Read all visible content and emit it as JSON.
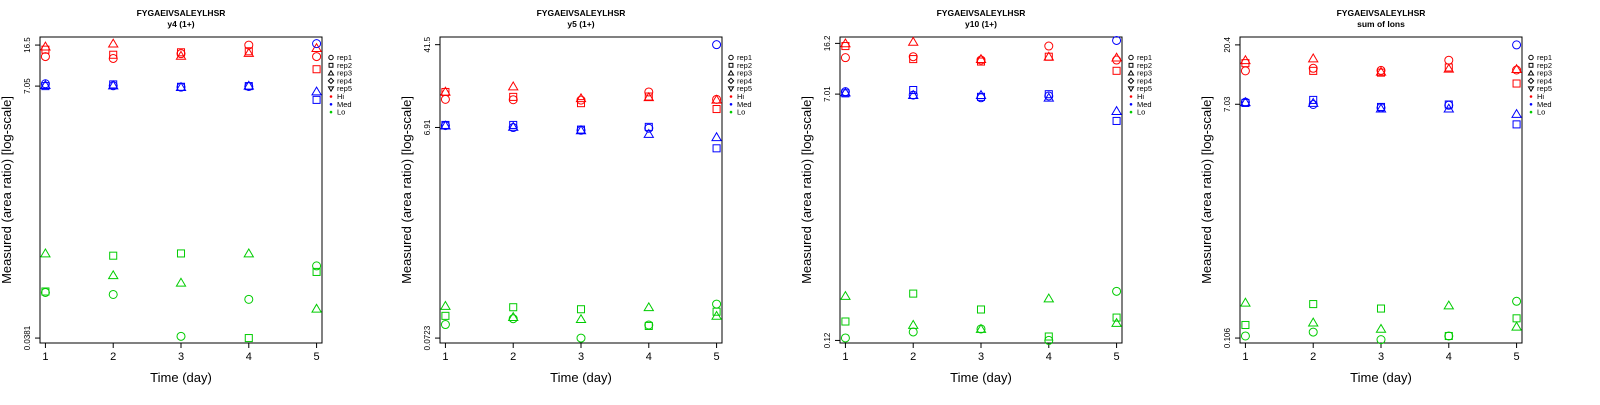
{
  "chart_data": [
    {
      "type": "scatter",
      "title": "FYGAEIVSALEYLHSR",
      "subtitle": "y4 (1+)",
      "xlabel": "Time (day)",
      "ylabel": "Measured (area ratio) [log-scale]",
      "x_ticks": [
        "1",
        "2",
        "3",
        "4",
        "5"
      ],
      "y_scale": "log",
      "y_ticks": [
        0.0381,
        7.05,
        16.5
      ],
      "y_tick_labels": [
        "0.0381",
        "7.05",
        "16.5"
      ],
      "xlim": [
        0.92,
        5.08
      ],
      "ylim": [
        0.0344,
        19.5
      ],
      "legend_position": "right",
      "legend": {
        "replicates": [
          {
            "name": "rep1",
            "marker": "circle"
          },
          {
            "name": "rep2",
            "marker": "square"
          },
          {
            "name": "rep3",
            "marker": "triangle-up"
          },
          {
            "name": "rep4",
            "marker": "diamond"
          },
          {
            "name": "rep5",
            "marker": "triangle-down"
          }
        ],
        "groups": [
          {
            "name": "Hi",
            "color": "#ff0000"
          },
          {
            "name": "Med",
            "color": "#0000ff"
          },
          {
            "name": "Lo",
            "color": "#00cc00"
          }
        ]
      },
      "series": [
        {
          "group": "Hi",
          "rep": "rep1",
          "x": [
            1,
            2,
            3,
            4,
            5
          ],
          "y": [
            13.0,
            12.5,
            13.8,
            16.5,
            13.0
          ]
        },
        {
          "group": "Hi",
          "rep": "rep2",
          "x": [
            1,
            2,
            3,
            4,
            5
          ],
          "y": [
            15.0,
            13.5,
            14.2,
            14.5,
            10.0
          ]
        },
        {
          "group": "Hi",
          "rep": "rep3",
          "x": [
            1,
            2,
            3,
            4,
            5
          ],
          "y": [
            16.0,
            17.0,
            13.2,
            14.0,
            15.5
          ]
        },
        {
          "group": "Med",
          "rep": "rep1",
          "x": [
            1,
            2,
            3,
            4,
            5
          ],
          "y": [
            7.4,
            7.1,
            6.9,
            7.0,
            17.0
          ]
        },
        {
          "group": "Med",
          "rep": "rep2",
          "x": [
            1,
            2,
            3,
            4,
            5
          ],
          "y": [
            7.05,
            7.3,
            6.95,
            7.05,
            5.3
          ]
        },
        {
          "group": "Med",
          "rep": "rep3",
          "x": [
            1,
            2,
            3,
            4,
            5
          ],
          "y": [
            7.2,
            7.15,
            6.9,
            7.1,
            6.3
          ]
        },
        {
          "group": "Lo",
          "rep": "rep1",
          "x": [
            1,
            2,
            3,
            4,
            5
          ],
          "y": [
            0.098,
            0.094,
            0.0395,
            0.085,
            0.17
          ]
        },
        {
          "group": "Lo",
          "rep": "rep2",
          "x": [
            1,
            2,
            3,
            4,
            5
          ],
          "y": [
            0.1,
            0.21,
            0.22,
            0.0381,
            0.15
          ]
        },
        {
          "group": "Lo",
          "rep": "rep3",
          "x": [
            1,
            2,
            3,
            4,
            5
          ],
          "y": [
            0.22,
            0.14,
            0.12,
            0.22,
            0.07
          ]
        }
      ]
    },
    {
      "type": "scatter",
      "title": "FYGAEIVSALEYLHSR",
      "subtitle": "y5 (1+)",
      "xlabel": "Time (day)",
      "ylabel": "Measured (area ratio) [log-scale]",
      "x_ticks": [
        "1",
        "2",
        "3",
        "4",
        "5"
      ],
      "y_scale": "log",
      "y_ticks": [
        0.0723,
        6.91,
        41.5
      ],
      "y_tick_labels": [
        "0.0723",
        "6.91",
        "41.5"
      ],
      "xlim": [
        0.92,
        5.08
      ],
      "ylim": [
        0.065,
        49.0
      ],
      "legend_position": "right",
      "legend": {
        "replicates": [
          {
            "name": "rep1",
            "marker": "circle"
          },
          {
            "name": "rep2",
            "marker": "square"
          },
          {
            "name": "rep3",
            "marker": "triangle-up"
          },
          {
            "name": "rep4",
            "marker": "diamond"
          },
          {
            "name": "rep5",
            "marker": "triangle-down"
          }
        ],
        "groups": [
          {
            "name": "Hi",
            "color": "#ff0000"
          },
          {
            "name": "Med",
            "color": "#0000ff"
          },
          {
            "name": "Lo",
            "color": "#00cc00"
          }
        ]
      },
      "series": [
        {
          "group": "Hi",
          "rep": "rep1",
          "x": [
            1,
            2,
            3,
            4,
            5
          ],
          "y": [
            12.7,
            12.6,
            12.5,
            14.9,
            12.7
          ]
        },
        {
          "group": "Hi",
          "rep": "rep2",
          "x": [
            1,
            2,
            3,
            4,
            5
          ],
          "y": [
            14.9,
            13.4,
            11.7,
            13.5,
            10.3
          ]
        },
        {
          "group": "Hi",
          "rep": "rep3",
          "x": [
            1,
            2,
            3,
            4,
            5
          ],
          "y": [
            15.0,
            16.8,
            13.0,
            13.3,
            12.6
          ]
        },
        {
          "group": "Med",
          "rep": "rep1",
          "x": [
            1,
            2,
            3,
            4,
            5
          ],
          "y": [
            7.2,
            6.9,
            6.5,
            6.8,
            41.5
          ]
        },
        {
          "group": "Med",
          "rep": "rep2",
          "x": [
            1,
            2,
            3,
            4,
            5
          ],
          "y": [
            7.3,
            7.3,
            6.6,
            7.0,
            4.4
          ]
        },
        {
          "group": "Med",
          "rep": "rep3",
          "x": [
            1,
            2,
            3,
            4,
            5
          ],
          "y": [
            7.2,
            7.0,
            6.5,
            6.0,
            5.6
          ]
        },
        {
          "group": "Lo",
          "rep": "rep1",
          "x": [
            1,
            2,
            3,
            4,
            5
          ],
          "y": [
            0.097,
            0.11,
            0.0723,
            0.096,
            0.151
          ]
        },
        {
          "group": "Lo",
          "rep": "rep2",
          "x": [
            1,
            2,
            3,
            4,
            5
          ],
          "y": [
            0.117,
            0.141,
            0.135,
            0.094,
            0.128
          ]
        },
        {
          "group": "Lo",
          "rep": "rep3",
          "x": [
            1,
            2,
            3,
            4,
            5
          ],
          "y": [
            0.145,
            0.114,
            0.109,
            0.141,
            0.117
          ]
        }
      ]
    },
    {
      "type": "scatter",
      "title": "FYGAEIVSALEYLHSR",
      "subtitle": "y10 (1+)",
      "xlabel": "Time (day)",
      "ylabel": "Measured (area ratio) [log-scale]",
      "x_ticks": [
        "1",
        "2",
        "3",
        "4",
        "5"
      ],
      "y_scale": "log",
      "y_ticks": [
        0.12,
        7.01,
        16.2
      ],
      "y_tick_labels": [
        "0.12",
        "7.01",
        "16.2"
      ],
      "xlim": [
        0.92,
        5.08
      ],
      "ylim": [
        0.115,
        18.0
      ],
      "legend_position": "right",
      "legend": {
        "replicates": [
          {
            "name": "rep1",
            "marker": "circle"
          },
          {
            "name": "rep2",
            "marker": "square"
          },
          {
            "name": "rep3",
            "marker": "triangle-up"
          },
          {
            "name": "rep4",
            "marker": "diamond"
          },
          {
            "name": "rep5",
            "marker": "triangle-down"
          }
        ],
        "groups": [
          {
            "name": "Hi",
            "color": "#ff0000"
          },
          {
            "name": "Med",
            "color": "#0000ff"
          },
          {
            "name": "Lo",
            "color": "#00cc00"
          }
        ]
      },
      "series": [
        {
          "group": "Hi",
          "rep": "rep1",
          "x": [
            1,
            2,
            3,
            4,
            5
          ],
          "y": [
            12.8,
            13.0,
            12.3,
            15.5,
            12.3
          ]
        },
        {
          "group": "Hi",
          "rep": "rep2",
          "x": [
            1,
            2,
            3,
            4,
            5
          ],
          "y": [
            15.5,
            12.5,
            12.0,
            13.0,
            10.3
          ]
        },
        {
          "group": "Hi",
          "rep": "rep3",
          "x": [
            1,
            2,
            3,
            4,
            5
          ],
          "y": [
            16.2,
            16.6,
            12.5,
            13.0,
            12.8
          ]
        },
        {
          "group": "Med",
          "rep": "rep1",
          "x": [
            1,
            2,
            3,
            4,
            5
          ],
          "y": [
            7.3,
            6.9,
            6.6,
            6.8,
            17.0
          ]
        },
        {
          "group": "Med",
          "rep": "rep2",
          "x": [
            1,
            2,
            3,
            4,
            5
          ],
          "y": [
            7.1,
            7.5,
            6.7,
            7.0,
            4.5
          ]
        },
        {
          "group": "Med",
          "rep": "rep3",
          "x": [
            1,
            2,
            3,
            4,
            5
          ],
          "y": [
            7.2,
            6.9,
            6.9,
            6.6,
            5.3
          ]
        },
        {
          "group": "Lo",
          "rep": "rep1",
          "x": [
            1,
            2,
            3,
            4,
            5
          ],
          "y": [
            0.125,
            0.138,
            0.145,
            0.12,
            0.27
          ]
        },
        {
          "group": "Lo",
          "rep": "rep2",
          "x": [
            1,
            2,
            3,
            4,
            5
          ],
          "y": [
            0.164,
            0.26,
            0.2,
            0.128,
            0.175
          ]
        },
        {
          "group": "Lo",
          "rep": "rep3",
          "x": [
            1,
            2,
            3,
            4,
            5
          ],
          "y": [
            0.25,
            0.155,
            0.145,
            0.24,
            0.16
          ]
        }
      ]
    },
    {
      "type": "scatter",
      "title": "FYGAEIVSALEYLHSR",
      "subtitle": "sum of Ions",
      "xlabel": "Time (day)",
      "ylabel": "Measured (area ratio) [log-scale]",
      "x_ticks": [
        "1",
        "2",
        "3",
        "4",
        "5"
      ],
      "y_scale": "log",
      "y_ticks": [
        0.106,
        7.03,
        20.4
      ],
      "y_tick_labels": [
        "0.106",
        "7.03",
        "20.4"
      ],
      "xlim": [
        0.92,
        5.08
      ],
      "ylim": [
        0.097,
        23.5
      ],
      "legend_position": "right",
      "legend": {
        "replicates": [
          {
            "name": "rep1",
            "marker": "circle"
          },
          {
            "name": "rep2",
            "marker": "square"
          },
          {
            "name": "rep3",
            "marker": "triangle-up"
          },
          {
            "name": "rep4",
            "marker": "diamond"
          },
          {
            "name": "rep5",
            "marker": "triangle-down"
          }
        ],
        "groups": [
          {
            "name": "Hi",
            "color": "#ff0000"
          },
          {
            "name": "Med",
            "color": "#0000ff"
          },
          {
            "name": "Lo",
            "color": "#00cc00"
          }
        ]
      },
      "series": [
        {
          "group": "Hi",
          "rep": "rep1",
          "x": [
            1,
            2,
            3,
            4,
            5
          ],
          "y": [
            12.8,
            13.4,
            12.9,
            15.5,
            13.0
          ]
        },
        {
          "group": "Hi",
          "rep": "rep2",
          "x": [
            1,
            2,
            3,
            4,
            5
          ],
          "y": [
            14.7,
            12.8,
            12.4,
            13.6,
            10.2
          ]
        },
        {
          "group": "Hi",
          "rep": "rep3",
          "x": [
            1,
            2,
            3,
            4,
            5
          ],
          "y": [
            15.5,
            16.0,
            12.6,
            13.3,
            13.2
          ]
        },
        {
          "group": "Med",
          "rep": "rep1",
          "x": [
            1,
            2,
            3,
            4,
            5
          ],
          "y": [
            7.3,
            7.0,
            6.6,
            6.9,
            20.4
          ]
        },
        {
          "group": "Med",
          "rep": "rep2",
          "x": [
            1,
            2,
            3,
            4,
            5
          ],
          "y": [
            7.2,
            7.6,
            6.7,
            7.0,
            4.9
          ]
        },
        {
          "group": "Med",
          "rep": "rep3",
          "x": [
            1,
            2,
            3,
            4,
            5
          ],
          "y": [
            7.3,
            7.2,
            6.5,
            6.5,
            5.9
          ]
        },
        {
          "group": "Lo",
          "rep": "rep1",
          "x": [
            1,
            2,
            3,
            4,
            5
          ],
          "y": [
            0.11,
            0.118,
            0.103,
            0.11,
            0.205
          ]
        },
        {
          "group": "Lo",
          "rep": "rep2",
          "x": [
            1,
            2,
            3,
            4,
            5
          ],
          "y": [
            0.134,
            0.195,
            0.18,
            0.11,
            0.151
          ]
        },
        {
          "group": "Lo",
          "rep": "rep3",
          "x": [
            1,
            2,
            3,
            4,
            5
          ],
          "y": [
            0.2,
            0.14,
            0.125,
            0.19,
            0.13
          ]
        }
      ]
    }
  ]
}
